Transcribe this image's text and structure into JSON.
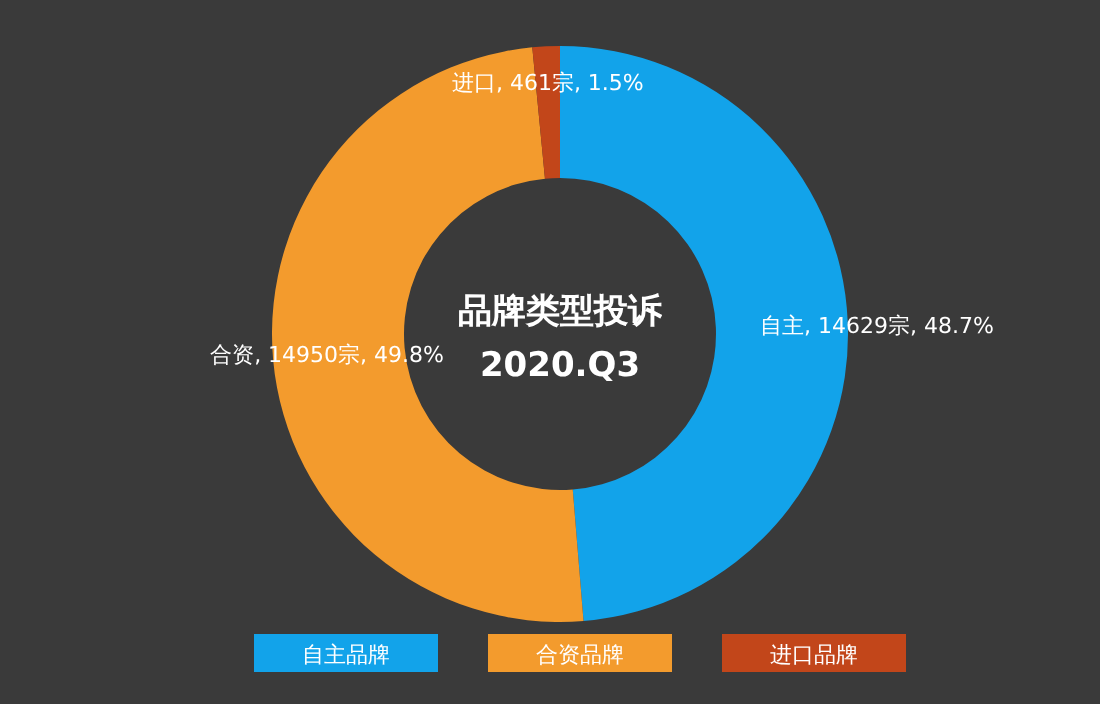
{
  "chart_data": {
    "type": "donut",
    "title": "品牌类型投诉",
    "subtitle": "2020.Q3",
    "categories": [
      "自主品牌",
      "合资品牌",
      "进口品牌"
    ],
    "values": [
      14629,
      14950,
      461
    ],
    "colors": [
      "#12a3ea",
      "#f39b2d",
      "#c2461a"
    ],
    "value_labels": [
      "自主, 14629宗, 48.7%",
      "合资, 14950宗, 49.8%",
      "进口, 461宗, 1.5%"
    ],
    "legend": "bottom"
  }
}
